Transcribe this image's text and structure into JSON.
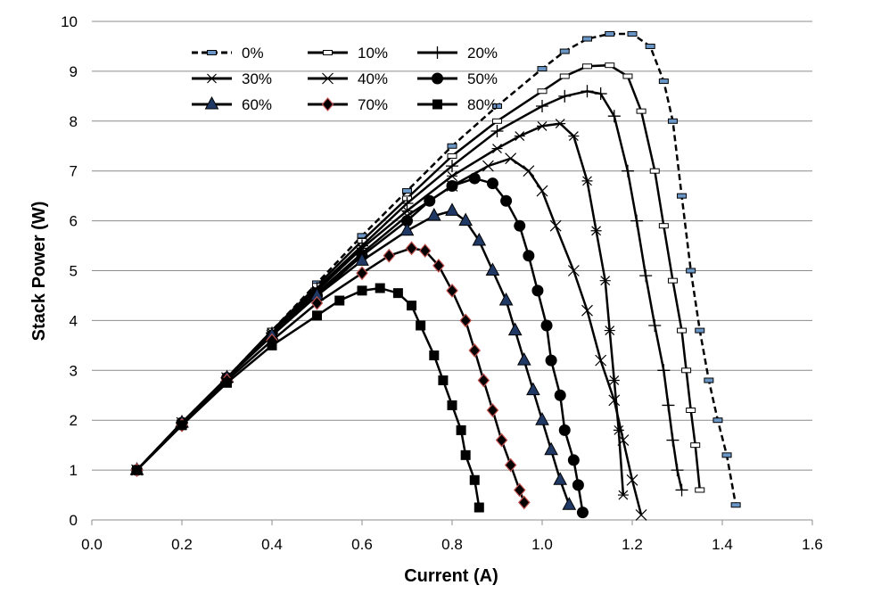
{
  "chart_data": {
    "type": "line",
    "title": "",
    "xlabel": "Current (A)",
    "ylabel": "Stack Power (W)",
    "xlim": [
      0,
      1.6
    ],
    "ylim": [
      0,
      10
    ],
    "x_ticks": [
      "0.0",
      "0.2",
      "0.4",
      "0.6",
      "0.8",
      "1.0",
      "1.2",
      "1.4",
      "1.6"
    ],
    "y_ticks": [
      "0",
      "1",
      "2",
      "3",
      "4",
      "5",
      "6",
      "7",
      "8",
      "9",
      "10"
    ],
    "grid": "horizontal",
    "legend_position": "top-left",
    "series": [
      {
        "name": "0%",
        "marker": "dash-box",
        "line": "dashed",
        "marker_color": "#6a96c6",
        "points": [
          [
            0.1,
            1.0
          ],
          [
            0.2,
            1.95
          ],
          [
            0.3,
            2.85
          ],
          [
            0.4,
            3.8
          ],
          [
            0.5,
            4.75
          ],
          [
            0.6,
            5.7
          ],
          [
            0.7,
            6.6
          ],
          [
            0.8,
            7.5
          ],
          [
            0.9,
            8.3
          ],
          [
            1.0,
            9.05
          ],
          [
            1.05,
            9.4
          ],
          [
            1.1,
            9.65
          ],
          [
            1.15,
            9.75
          ],
          [
            1.2,
            9.75
          ],
          [
            1.24,
            9.5
          ],
          [
            1.27,
            8.8
          ],
          [
            1.29,
            8.0
          ],
          [
            1.31,
            6.5
          ],
          [
            1.33,
            5.0
          ],
          [
            1.35,
            3.8
          ],
          [
            1.37,
            2.8
          ],
          [
            1.39,
            2.0
          ],
          [
            1.41,
            1.3
          ],
          [
            1.43,
            0.3
          ]
        ]
      },
      {
        "name": "10%",
        "marker": "dash-box",
        "line": "solid",
        "marker_color": "#ffffff",
        "points": [
          [
            0.1,
            1.0
          ],
          [
            0.2,
            1.95
          ],
          [
            0.3,
            2.85
          ],
          [
            0.4,
            3.8
          ],
          [
            0.5,
            4.7
          ],
          [
            0.6,
            5.6
          ],
          [
            0.7,
            6.45
          ],
          [
            0.8,
            7.3
          ],
          [
            0.9,
            8.0
          ],
          [
            1.0,
            8.6
          ],
          [
            1.05,
            8.9
          ],
          [
            1.1,
            9.1
          ],
          [
            1.15,
            9.12
          ],
          [
            1.19,
            8.9
          ],
          [
            1.22,
            8.2
          ],
          [
            1.25,
            7.0
          ],
          [
            1.27,
            5.9
          ],
          [
            1.29,
            4.8
          ],
          [
            1.31,
            3.8
          ],
          [
            1.32,
            3.0
          ],
          [
            1.33,
            2.2
          ],
          [
            1.34,
            1.5
          ],
          [
            1.35,
            0.6
          ]
        ]
      },
      {
        "name": "20%",
        "marker": "plus",
        "line": "solid",
        "points": [
          [
            0.1,
            1.0
          ],
          [
            0.2,
            1.95
          ],
          [
            0.3,
            2.85
          ],
          [
            0.4,
            3.75
          ],
          [
            0.5,
            4.65
          ],
          [
            0.6,
            5.5
          ],
          [
            0.7,
            6.35
          ],
          [
            0.8,
            7.1
          ],
          [
            0.9,
            7.8
          ],
          [
            1.0,
            8.3
          ],
          [
            1.05,
            8.5
          ],
          [
            1.1,
            8.6
          ],
          [
            1.13,
            8.55
          ],
          [
            1.16,
            8.1
          ],
          [
            1.19,
            7.0
          ],
          [
            1.21,
            6.0
          ],
          [
            1.23,
            4.9
          ],
          [
            1.25,
            3.9
          ],
          [
            1.27,
            3.0
          ],
          [
            1.28,
            2.3
          ],
          [
            1.29,
            1.6
          ],
          [
            1.3,
            1.0
          ],
          [
            1.31,
            0.6
          ]
        ]
      },
      {
        "name": "30%",
        "marker": "asterisk",
        "line": "solid",
        "points": [
          [
            0.1,
            1.0
          ],
          [
            0.2,
            1.95
          ],
          [
            0.3,
            2.85
          ],
          [
            0.4,
            3.75
          ],
          [
            0.5,
            4.6
          ],
          [
            0.6,
            5.45
          ],
          [
            0.7,
            6.2
          ],
          [
            0.8,
            6.9
          ],
          [
            0.9,
            7.45
          ],
          [
            0.95,
            7.7
          ],
          [
            1.0,
            7.9
          ],
          [
            1.04,
            7.95
          ],
          [
            1.07,
            7.7
          ],
          [
            1.1,
            6.8
          ],
          [
            1.12,
            5.8
          ],
          [
            1.14,
            4.8
          ],
          [
            1.15,
            3.8
          ],
          [
            1.16,
            2.8
          ],
          [
            1.17,
            1.8
          ],
          [
            1.18,
            0.5
          ]
        ]
      },
      {
        "name": "40%",
        "marker": "cross",
        "line": "solid",
        "points": [
          [
            0.1,
            1.0
          ],
          [
            0.2,
            1.95
          ],
          [
            0.3,
            2.85
          ],
          [
            0.4,
            3.7
          ],
          [
            0.5,
            4.55
          ],
          [
            0.6,
            5.35
          ],
          [
            0.7,
            6.1
          ],
          [
            0.8,
            6.7
          ],
          [
            0.88,
            7.1
          ],
          [
            0.93,
            7.25
          ],
          [
            0.97,
            7.0
          ],
          [
            1.0,
            6.6
          ],
          [
            1.03,
            5.9
          ],
          [
            1.07,
            5.0
          ],
          [
            1.1,
            4.2
          ],
          [
            1.13,
            3.2
          ],
          [
            1.16,
            2.4
          ],
          [
            1.18,
            1.6
          ],
          [
            1.2,
            0.8
          ],
          [
            1.22,
            0.1
          ]
        ]
      },
      {
        "name": "50%",
        "marker": "circle",
        "line": "solid",
        "points": [
          [
            0.1,
            1.0
          ],
          [
            0.2,
            1.95
          ],
          [
            0.3,
            2.85
          ],
          [
            0.4,
            3.7
          ],
          [
            0.5,
            4.5
          ],
          [
            0.6,
            5.3
          ],
          [
            0.7,
            6.0
          ],
          [
            0.75,
            6.4
          ],
          [
            0.8,
            6.7
          ],
          [
            0.85,
            6.85
          ],
          [
            0.89,
            6.75
          ],
          [
            0.92,
            6.4
          ],
          [
            0.95,
            5.9
          ],
          [
            0.97,
            5.3
          ],
          [
            0.99,
            4.6
          ],
          [
            1.01,
            3.9
          ],
          [
            1.02,
            3.2
          ],
          [
            1.04,
            2.5
          ],
          [
            1.05,
            1.8
          ],
          [
            1.07,
            1.2
          ],
          [
            1.08,
            0.7
          ],
          [
            1.09,
            0.15
          ]
        ]
      },
      {
        "name": "60%",
        "marker": "triangle",
        "line": "solid",
        "marker_color": "#1f3864",
        "points": [
          [
            0.1,
            1.0
          ],
          [
            0.2,
            1.95
          ],
          [
            0.3,
            2.85
          ],
          [
            0.4,
            3.7
          ],
          [
            0.5,
            4.5
          ],
          [
            0.6,
            5.2
          ],
          [
            0.7,
            5.8
          ],
          [
            0.76,
            6.1
          ],
          [
            0.8,
            6.2
          ],
          [
            0.83,
            6.0
          ],
          [
            0.86,
            5.6
          ],
          [
            0.89,
            5.0
          ],
          [
            0.92,
            4.4
          ],
          [
            0.94,
            3.8
          ],
          [
            0.96,
            3.2
          ],
          [
            0.98,
            2.6
          ],
          [
            1.0,
            2.0
          ],
          [
            1.02,
            1.4
          ],
          [
            1.04,
            0.8
          ],
          [
            1.06,
            0.3
          ]
        ]
      },
      {
        "name": "70%",
        "marker": "diamond",
        "line": "solid",
        "marker_edge": "#c0504d",
        "points": [
          [
            0.1,
            1.0
          ],
          [
            0.2,
            1.9
          ],
          [
            0.3,
            2.8
          ],
          [
            0.4,
            3.6
          ],
          [
            0.5,
            4.35
          ],
          [
            0.6,
            4.95
          ],
          [
            0.66,
            5.3
          ],
          [
            0.71,
            5.45
          ],
          [
            0.74,
            5.4
          ],
          [
            0.77,
            5.1
          ],
          [
            0.8,
            4.6
          ],
          [
            0.83,
            4.0
          ],
          [
            0.85,
            3.4
          ],
          [
            0.87,
            2.8
          ],
          [
            0.89,
            2.2
          ],
          [
            0.91,
            1.6
          ],
          [
            0.93,
            1.1
          ],
          [
            0.95,
            0.6
          ],
          [
            0.96,
            0.35
          ]
        ]
      },
      {
        "name": "80%",
        "marker": "square",
        "line": "solid",
        "points": [
          [
            0.1,
            1.0
          ],
          [
            0.2,
            1.9
          ],
          [
            0.3,
            2.75
          ],
          [
            0.4,
            3.5
          ],
          [
            0.5,
            4.1
          ],
          [
            0.55,
            4.4
          ],
          [
            0.6,
            4.6
          ],
          [
            0.64,
            4.65
          ],
          [
            0.68,
            4.55
          ],
          [
            0.71,
            4.3
          ],
          [
            0.73,
            3.9
          ],
          [
            0.76,
            3.3
          ],
          [
            0.78,
            2.8
          ],
          [
            0.8,
            2.3
          ],
          [
            0.82,
            1.8
          ],
          [
            0.83,
            1.3
          ],
          [
            0.85,
            0.8
          ],
          [
            0.86,
            0.25
          ]
        ]
      }
    ]
  }
}
